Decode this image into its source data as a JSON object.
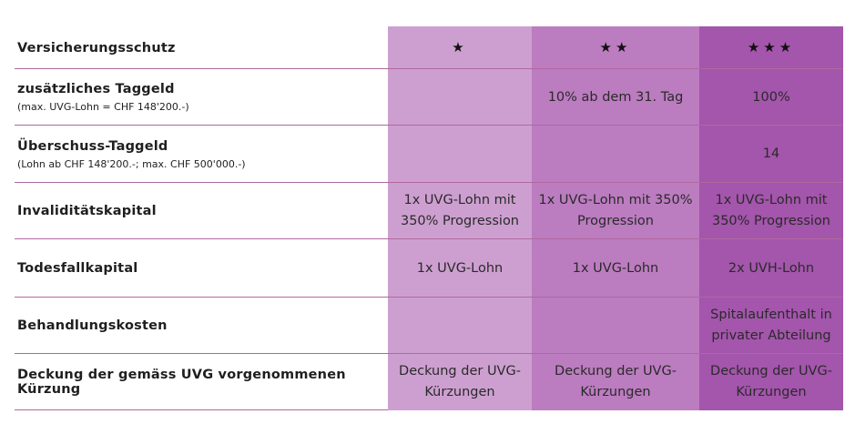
{
  "colors": {
    "col1_bg": "#cd9fd0",
    "col2_bg": "#bc7cc0",
    "col3_bg": "#a455ac",
    "divider": "#b0689f"
  },
  "header": {
    "label": "Versicherungsschutz",
    "levels": [
      "★",
      "★★",
      "★★★"
    ]
  },
  "rows": [
    {
      "label": "zusätzliches Taggeld",
      "sublabel": "(max. UVG-Lohn = CHF 148'200.-)",
      "values": [
        "",
        "10% ab dem 31. Tag",
        "100%"
      ]
    },
    {
      "label": "Überschuss-Taggeld",
      "sublabel": "(Lohn ab CHF 148'200.-; max. CHF 500'000.-)",
      "values": [
        "",
        "",
        "14"
      ]
    },
    {
      "label": "Invaliditätskapital",
      "sublabel": "",
      "values": [
        "1x UVG-Lohn mit 350% Progression",
        "1x UVG-Lohn mit 350% Progression",
        "1x UVG-Lohn mit 350% Progression"
      ]
    },
    {
      "label": "Todesfallkapital",
      "sublabel": "",
      "values": [
        "1x UVG-Lohn",
        "1x UVG-Lohn",
        "2x UVH-Lohn"
      ]
    },
    {
      "label": "Behandlungskosten",
      "sublabel": "",
      "values": [
        "",
        "",
        "Spitalaufenthalt in privater Abteilung"
      ]
    },
    {
      "label": "Deckung der gemäss UVG vorgenommenen Kürzung",
      "sublabel": "",
      "values": [
        "Deckung der UVG-Kürzungen",
        "Deckung der UVG-Kürzungen",
        "Deckung der UVG-Kürzungen"
      ]
    }
  ]
}
